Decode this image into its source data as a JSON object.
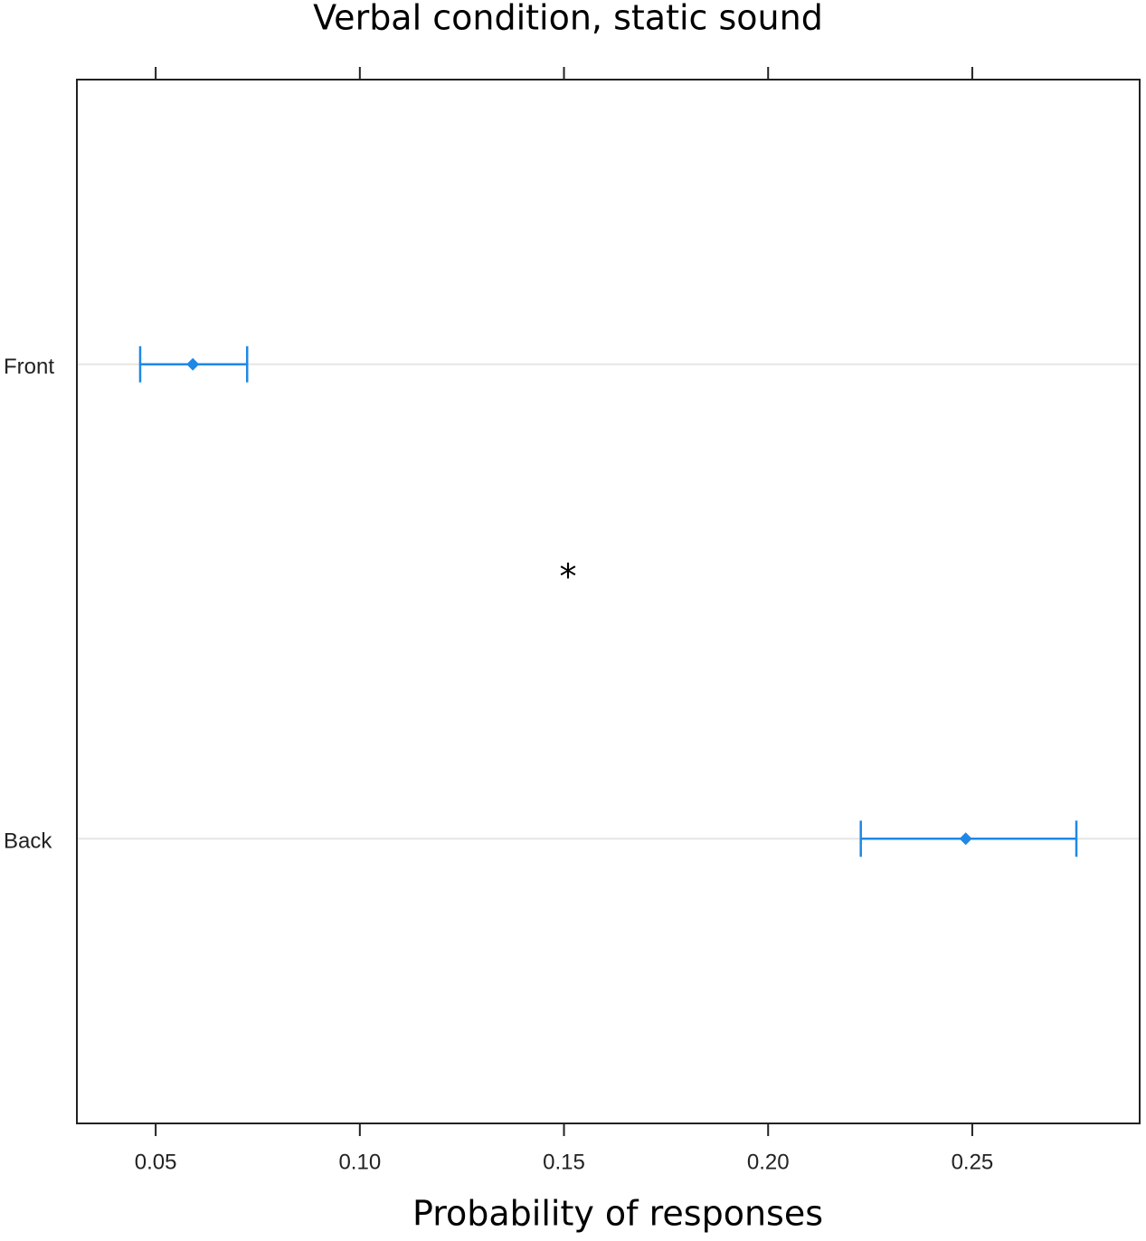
{
  "chart_data": {
    "type": "dot-errorbar",
    "title": "Verbal condition, static sound",
    "x_label": "Probability of responses",
    "annotation": "*",
    "categories": [
      "Front",
      "Back"
    ],
    "series": [
      {
        "name": null,
        "color": "#1e88e5",
        "values": [
          0.0591,
          0.2484
        ],
        "lower": [
          0.0462,
          0.2227
        ],
        "upper": [
          0.0724,
          0.2755
        ]
      }
    ],
    "xlim": [
      0.0307,
      0.291
    ],
    "xticks": [
      0.05,
      {
        "value": 0.1,
        "label": "0.10"
      },
      0.15,
      {
        "value": 0.2,
        "label": "0.20"
      },
      0.25
    ],
    "grid": true
  }
}
